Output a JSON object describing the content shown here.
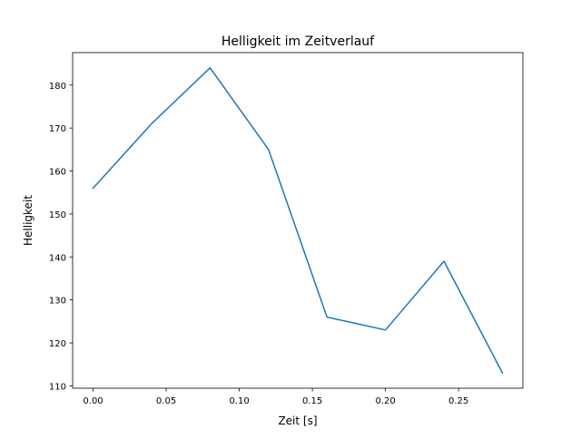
{
  "chart_data": {
    "type": "line",
    "title": "Helligkeit im Zeitverlauf",
    "xlabel": "Zeit [s]",
    "ylabel": "Helligkeit",
    "x": [
      0.0,
      0.04,
      0.08,
      0.12,
      0.16,
      0.2,
      0.24,
      0.28
    ],
    "series": [
      {
        "name": "Helligkeit",
        "values": [
          156,
          171,
          184,
          165,
          126,
          123,
          139,
          113
        ],
        "color": "#1f77b4"
      }
    ],
    "xlim": [
      -0.014,
      0.294
    ],
    "ylim": [
      109.45,
      187.55
    ],
    "xticks": [
      0.0,
      0.05,
      0.1,
      0.15,
      0.2,
      0.25
    ],
    "xtick_labels": [
      "0.00",
      "0.05",
      "0.10",
      "0.15",
      "0.20",
      "0.25"
    ],
    "yticks": [
      110,
      120,
      130,
      140,
      150,
      160,
      170,
      180
    ],
    "ytick_labels": [
      "110",
      "120",
      "130",
      "140",
      "150",
      "160",
      "170",
      "180"
    ],
    "grid": false
  }
}
